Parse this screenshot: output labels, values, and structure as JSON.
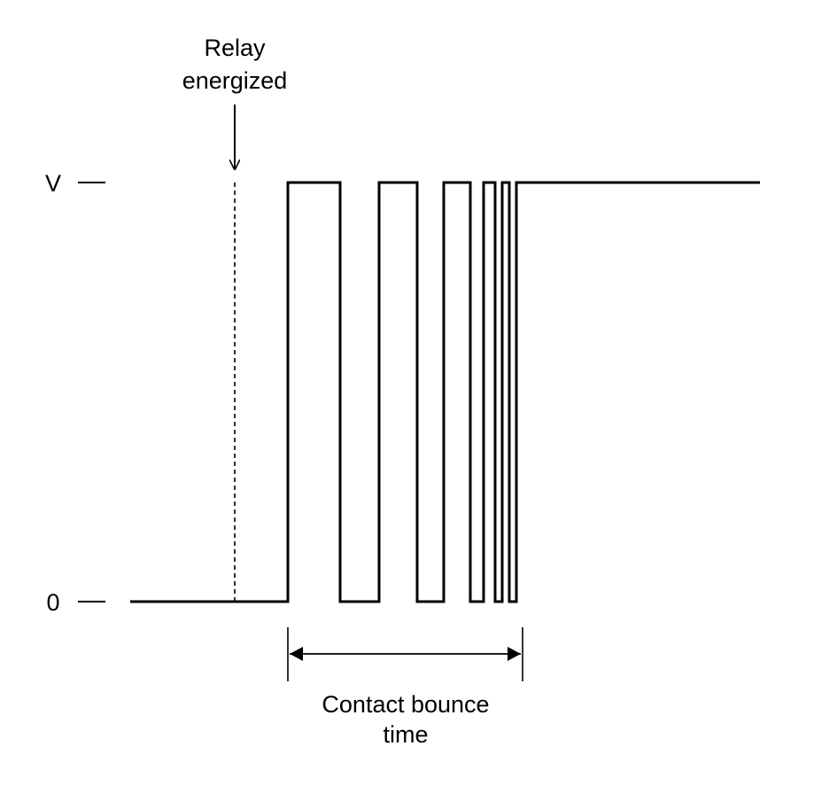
{
  "annotations": {
    "relay_energized_line1": "Relay",
    "relay_energized_line2": "energized",
    "bounce_time_line1": "Contact bounce",
    "bounce_time_line2": "time"
  },
  "axis": {
    "high_level_label": "V",
    "low_level_label": "0"
  },
  "colors": {
    "stroke": "#000000",
    "background": "#ffffff"
  }
}
